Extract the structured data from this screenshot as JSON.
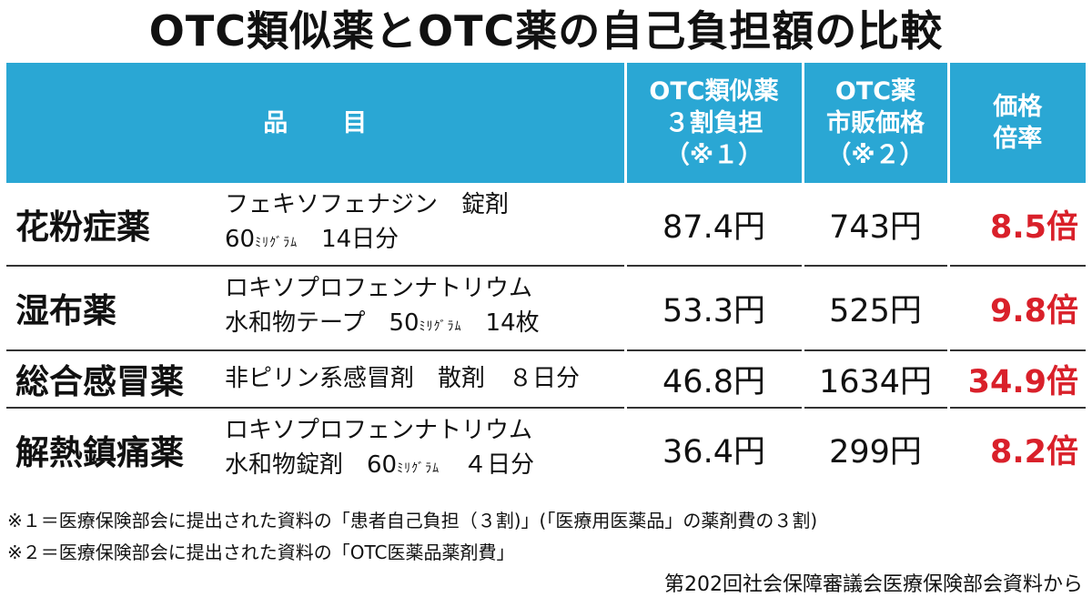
{
  "title": "OTC類似薬とOTC薬の自己負担額の比較",
  "header": {
    "item": "品目",
    "col_copay_line1": "OTC類似薬",
    "col_copay_line2": "３割負担",
    "col_copay_line3": "（※１）",
    "col_retail_line1": "OTC薬",
    "col_retail_line2": "市販価格",
    "col_retail_line3": "（※２）",
    "col_ratio_line1": "価格",
    "col_ratio_line2": "倍率"
  },
  "rows": [
    {
      "category": "花粉症薬",
      "item_line1_a": "フェキソフェナジン　錠剤",
      "item_line2_a": "60",
      "item_line2_unit": "ﾐﾘｸﾞﾗﾑ",
      "item_line2_b": "　14日分",
      "copay": "87.4円",
      "retail": "743円",
      "ratio": "8.5倍"
    },
    {
      "category": "湿布薬",
      "item_line1_a": "ロキソプロフェンナトリウム",
      "item_line2_a": "水和物テープ　50",
      "item_line2_unit": "ﾐﾘｸﾞﾗﾑ",
      "item_line2_b": "　14枚",
      "copay": "53.3円",
      "retail": "525円",
      "ratio": "9.8倍"
    },
    {
      "category": "総合感冒薬",
      "item_line1_a": "非ピリン系感冒剤　散剤　８日分",
      "copay": "46.8円",
      "retail": "1634円",
      "ratio": "34.9倍"
    },
    {
      "category": "解熱鎮痛薬",
      "item_line1_a": "ロキソプロフェンナトリウム",
      "item_line2_a": "水和物錠剤　60",
      "item_line2_unit": "ﾐﾘｸﾞﾗﾑ",
      "item_line2_b": "　４日分",
      "copay": "36.4円",
      "retail": "299円",
      "ratio": "8.2倍"
    }
  ],
  "footnotes": {
    "note1": "※１＝医療保険部会に提出された資料の「患者自己負担（３割)」(「医療用医薬品」の薬剤費の３割)",
    "note2": "※２＝医療保険部会に提出された資料の「OTC医薬品薬剤費」",
    "source": "第202回社会保障審議会医療保険部会資料から"
  },
  "colors": {
    "header_bg": "#2aa7d4",
    "ratio_text": "#d9202a"
  }
}
